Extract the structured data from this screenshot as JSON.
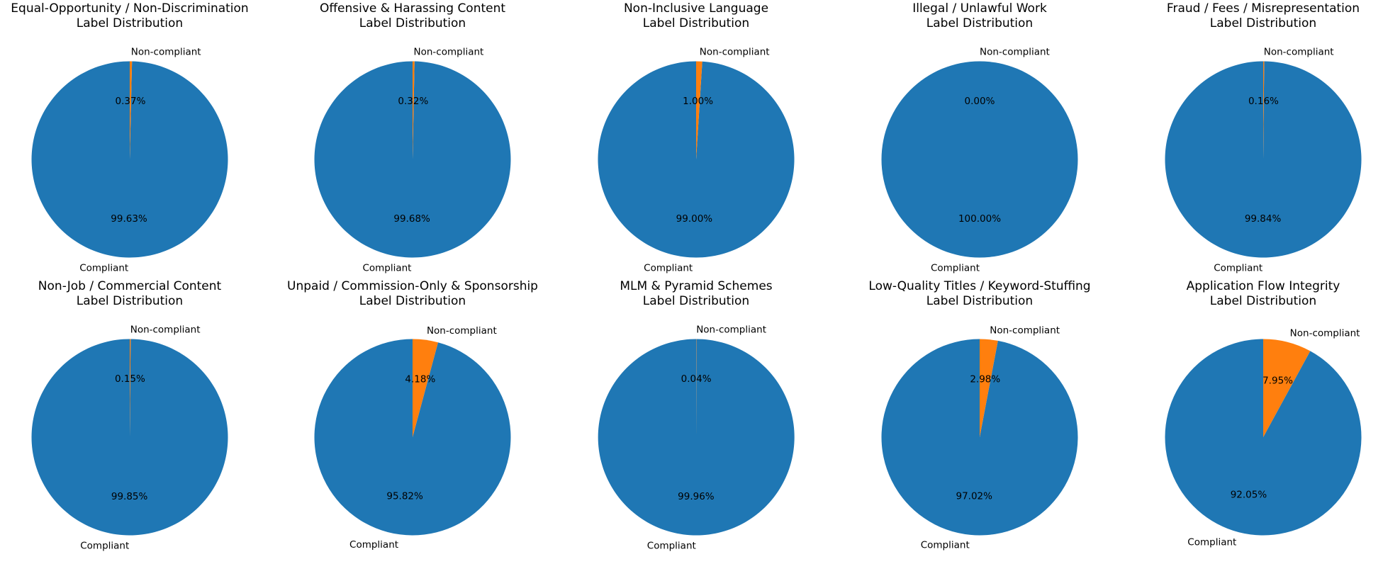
{
  "chart_data": [
    {
      "type": "pie",
      "title": [
        "Equal-Opportunity / Non-Discrimination",
        "Label Distribution"
      ],
      "categories": [
        "Compliant",
        "Non-compliant"
      ],
      "values": [
        99.63,
        0.37
      ],
      "percent_labels": [
        "99.63%",
        "0.37%"
      ],
      "colors": [
        "#1f77b4",
        "#ff7f0e"
      ]
    },
    {
      "type": "pie",
      "title": [
        "Offensive & Harassing Content",
        "Label Distribution"
      ],
      "categories": [
        "Compliant",
        "Non-compliant"
      ],
      "values": [
        99.68,
        0.32
      ],
      "percent_labels": [
        "99.68%",
        "0.32%"
      ],
      "colors": [
        "#1f77b4",
        "#ff7f0e"
      ]
    },
    {
      "type": "pie",
      "title": [
        "Non-Inclusive Language",
        "Label Distribution"
      ],
      "categories": [
        "Compliant",
        "Non-compliant"
      ],
      "values": [
        99.0,
        1.0
      ],
      "percent_labels": [
        "99.00%",
        "1.00%"
      ],
      "colors": [
        "#1f77b4",
        "#ff7f0e"
      ]
    },
    {
      "type": "pie",
      "title": [
        "Illegal / Unlawful Work",
        "Label Distribution"
      ],
      "categories": [
        "Compliant",
        "Non-compliant"
      ],
      "values": [
        100.0,
        0.0
      ],
      "percent_labels": [
        "100.00%",
        "0.00%"
      ],
      "colors": [
        "#1f77b4",
        "#ff7f0e"
      ]
    },
    {
      "type": "pie",
      "title": [
        "Fraud / Fees / Misrepresentation",
        "Label Distribution"
      ],
      "categories": [
        "Compliant",
        "Non-compliant"
      ],
      "values": [
        99.84,
        0.16
      ],
      "percent_labels": [
        "99.84%",
        "0.16%"
      ],
      "colors": [
        "#1f77b4",
        "#ff7f0e"
      ]
    },
    {
      "type": "pie",
      "title": [
        "Non-Job / Commercial Content",
        "Label Distribution"
      ],
      "categories": [
        "Compliant",
        "Non-compliant"
      ],
      "values": [
        99.85,
        0.15
      ],
      "percent_labels": [
        "99.85%",
        "0.15%"
      ],
      "colors": [
        "#1f77b4",
        "#ff7f0e"
      ]
    },
    {
      "type": "pie",
      "title": [
        "Unpaid / Commission-Only & Sponsorship",
        "Label Distribution"
      ],
      "categories": [
        "Compliant",
        "Non-compliant"
      ],
      "values": [
        95.82,
        4.18
      ],
      "percent_labels": [
        "95.82%",
        "4.18%"
      ],
      "colors": [
        "#1f77b4",
        "#ff7f0e"
      ]
    },
    {
      "type": "pie",
      "title": [
        "MLM & Pyramid Schemes",
        "Label Distribution"
      ],
      "categories": [
        "Compliant",
        "Non-compliant"
      ],
      "values": [
        99.96,
        0.04
      ],
      "percent_labels": [
        "99.96%",
        "0.04%"
      ],
      "colors": [
        "#1f77b4",
        "#ff7f0e"
      ]
    },
    {
      "type": "pie",
      "title": [
        "Low-Quality Titles / Keyword-Stuffing",
        "Label Distribution"
      ],
      "categories": [
        "Compliant",
        "Non-compliant"
      ],
      "values": [
        97.02,
        2.98
      ],
      "percent_labels": [
        "97.02%",
        "2.98%"
      ],
      "colors": [
        "#1f77b4",
        "#ff7f0e"
      ]
    },
    {
      "type": "pie",
      "title": [
        "Application Flow Integrity",
        "Label Distribution"
      ],
      "categories": [
        "Compliant",
        "Non-compliant"
      ],
      "values": [
        92.05,
        7.95
      ],
      "percent_labels": [
        "92.05%",
        "7.95%"
      ],
      "colors": [
        "#1f77b4",
        "#ff7f0e"
      ]
    }
  ]
}
